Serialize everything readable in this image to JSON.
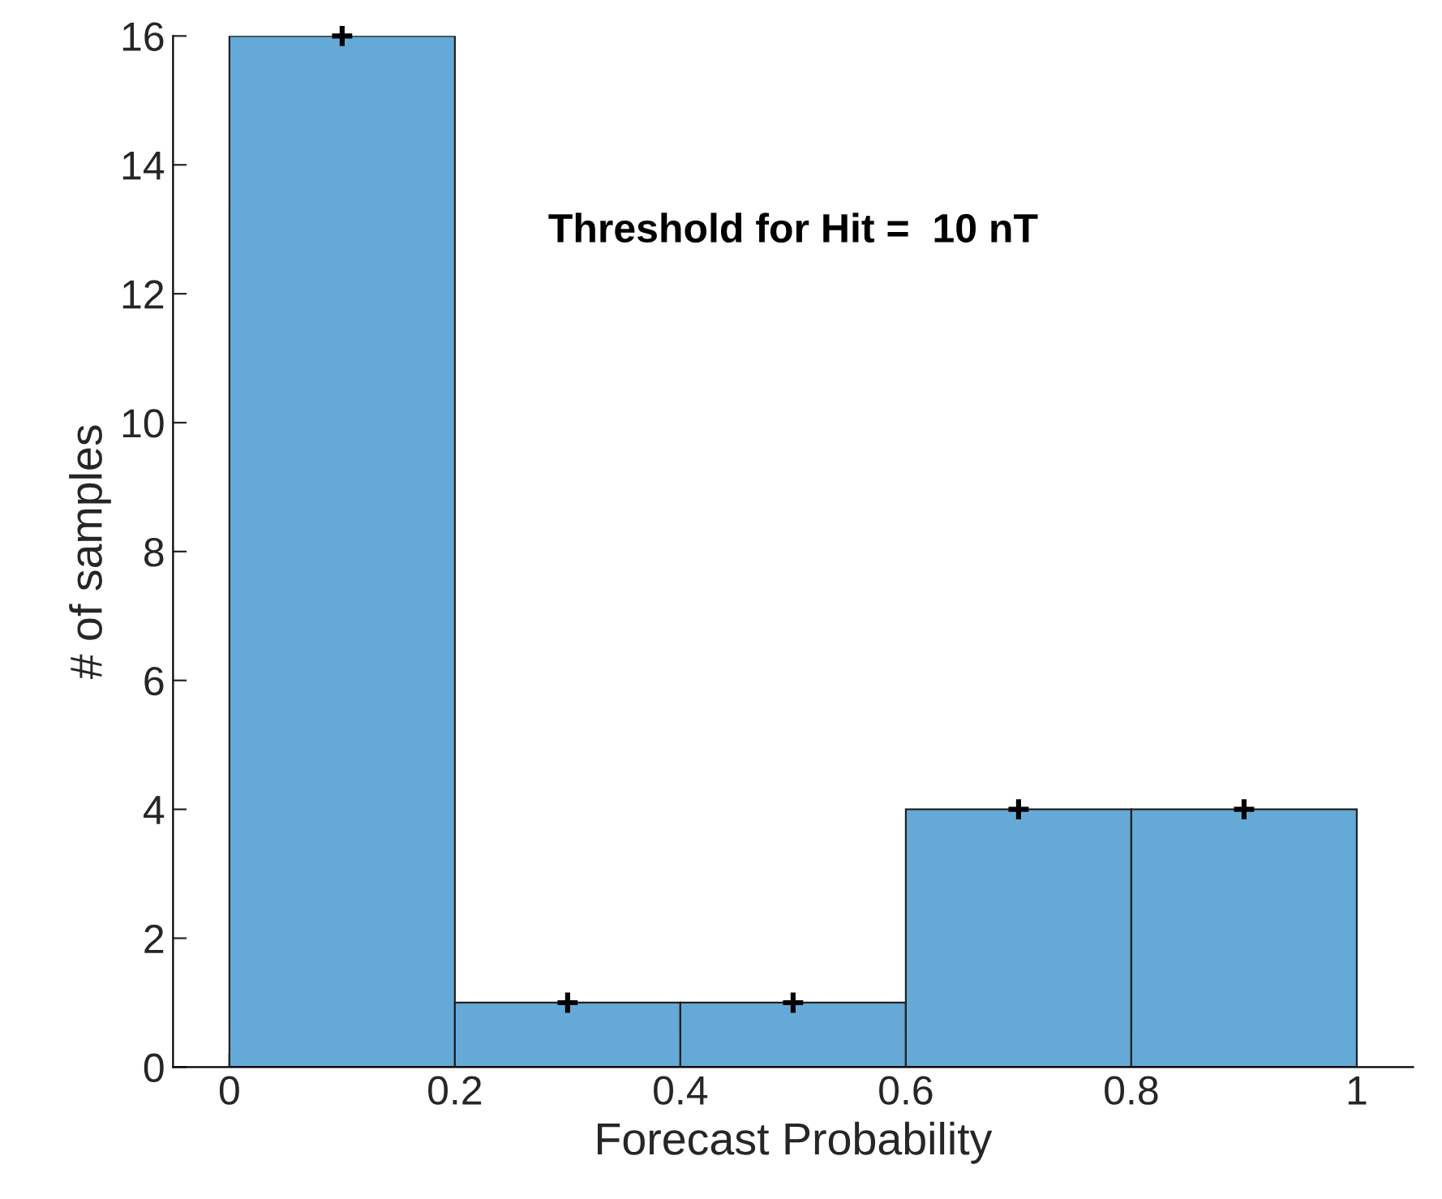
{
  "chart_data": {
    "type": "histogram",
    "xlabel": "Forecast Probability",
    "ylabel": "# of samples",
    "annotations": [
      "Threshold for Hit =  10 nT"
    ],
    "bins": [
      0,
      0.2,
      0.4,
      0.6,
      0.8,
      1
    ],
    "series": [
      {
        "color": "#65a9d7",
        "values": [
          16,
          1,
          1,
          4,
          4
        ]
      },
      {
        "type": "scatter",
        "x": [
          0.1,
          0.3,
          0.5,
          0.7,
          0.9
        ],
        "values": [
          16,
          1,
          1,
          4,
          4
        ],
        "color": "#000000",
        "marker": "cross"
      }
    ],
    "xlim": [
      -0.05,
      1.05
    ],
    "ylim": [
      0,
      16
    ],
    "xticks": [
      0,
      0.2,
      0.4,
      0.6,
      0.8,
      1
    ],
    "yticks": [
      0,
      2,
      4,
      6,
      8,
      10,
      12,
      14,
      16
    ],
    "grid": false,
    "legend": false
  }
}
